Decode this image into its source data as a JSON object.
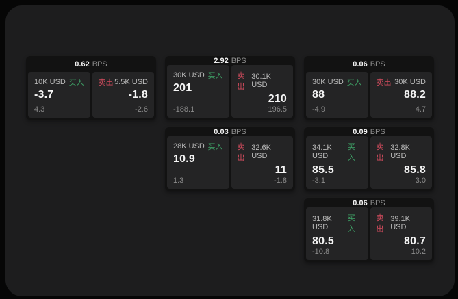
{
  "labels": {
    "bps": "BPS",
    "buy": "买入",
    "sell": "卖出"
  },
  "colors": {
    "buy": "#3fa468",
    "sell": "#d44c5e",
    "panel_bg": "#1d1d1e",
    "card_bg": "#121212",
    "tile_bg": "#242425"
  },
  "cards": [
    {
      "row": 1,
      "col": 1,
      "bps": "0.62",
      "buy": {
        "notional": "10K USD",
        "value": "-3.7",
        "delta": "4.3"
      },
      "sell": {
        "notional": "5.5K USD",
        "value": "-1.8",
        "delta": "-2.6"
      }
    },
    {
      "row": 1,
      "col": 2,
      "bps": "2.92",
      "buy": {
        "notional": "30K USD",
        "value": "201",
        "delta": "-188.1"
      },
      "sell": {
        "notional": "30.1K USD",
        "value": "210",
        "delta": "196.5"
      }
    },
    {
      "row": 1,
      "col": 3,
      "bps": "0.06",
      "buy": {
        "notional": "30K USD",
        "value": "88",
        "delta": "-4.9"
      },
      "sell": {
        "notional": "30K USD",
        "value": "88.2",
        "delta": "4.7"
      }
    },
    {
      "row": 2,
      "col": 2,
      "bps": "0.03",
      "buy": {
        "notional": "28K USD",
        "value": "10.9",
        "delta": "1.3"
      },
      "sell": {
        "notional": "32.6K USD",
        "value": "11",
        "delta": "-1.8"
      }
    },
    {
      "row": 2,
      "col": 3,
      "bps": "0.09",
      "buy": {
        "notional": "34.1K USD",
        "value": "85.5",
        "delta": "-3.1"
      },
      "sell": {
        "notional": "32.8K USD",
        "value": "85.8",
        "delta": "3.0"
      }
    },
    {
      "row": 3,
      "col": 3,
      "bps": "0.06",
      "buy": {
        "notional": "31.8K USD",
        "value": "80.5",
        "delta": "-10.8"
      },
      "sell": {
        "notional": "39.1K USD",
        "value": "80.7",
        "delta": "10.2"
      }
    }
  ]
}
